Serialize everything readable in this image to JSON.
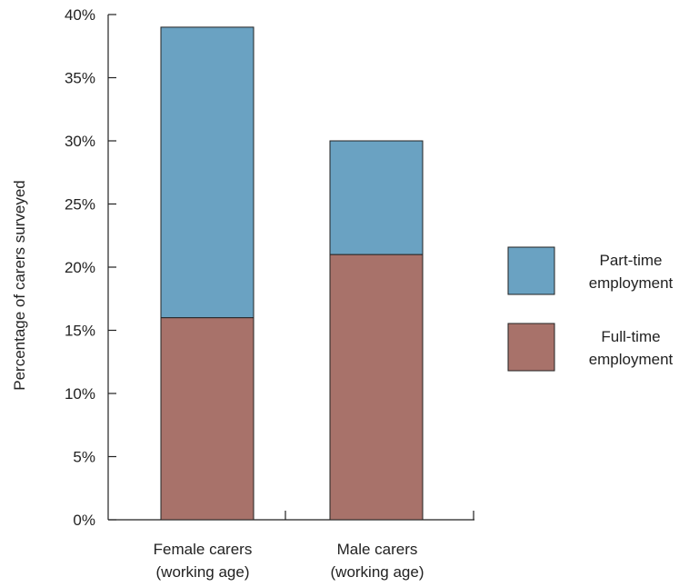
{
  "chart_data": {
    "type": "bar",
    "stacked": true,
    "title": "",
    "xlabel": "",
    "ylabel": "Percentage of carers surveyed",
    "ylim": [
      0,
      40
    ],
    "yticks": [
      "0%",
      "5%",
      "10%",
      "15%",
      "20%",
      "25%",
      "30%",
      "35%",
      "40%"
    ],
    "grid": false,
    "legend_position": "right",
    "categories": [
      [
        "Female carers",
        "(working age)"
      ],
      [
        "Male carers",
        "(working age)"
      ]
    ],
    "series": [
      {
        "name": "Full-time employment",
        "legend_lines": [
          "Full-time",
          "employment"
        ],
        "color": "#a8726a",
        "values": [
          16,
          21
        ]
      },
      {
        "name": "Part-time employment",
        "legend_lines": [
          "Part-time",
          "employment"
        ],
        "color": "#6aa2c2",
        "values": [
          23,
          9
        ]
      }
    ],
    "legend_order": [
      1,
      0
    ]
  }
}
